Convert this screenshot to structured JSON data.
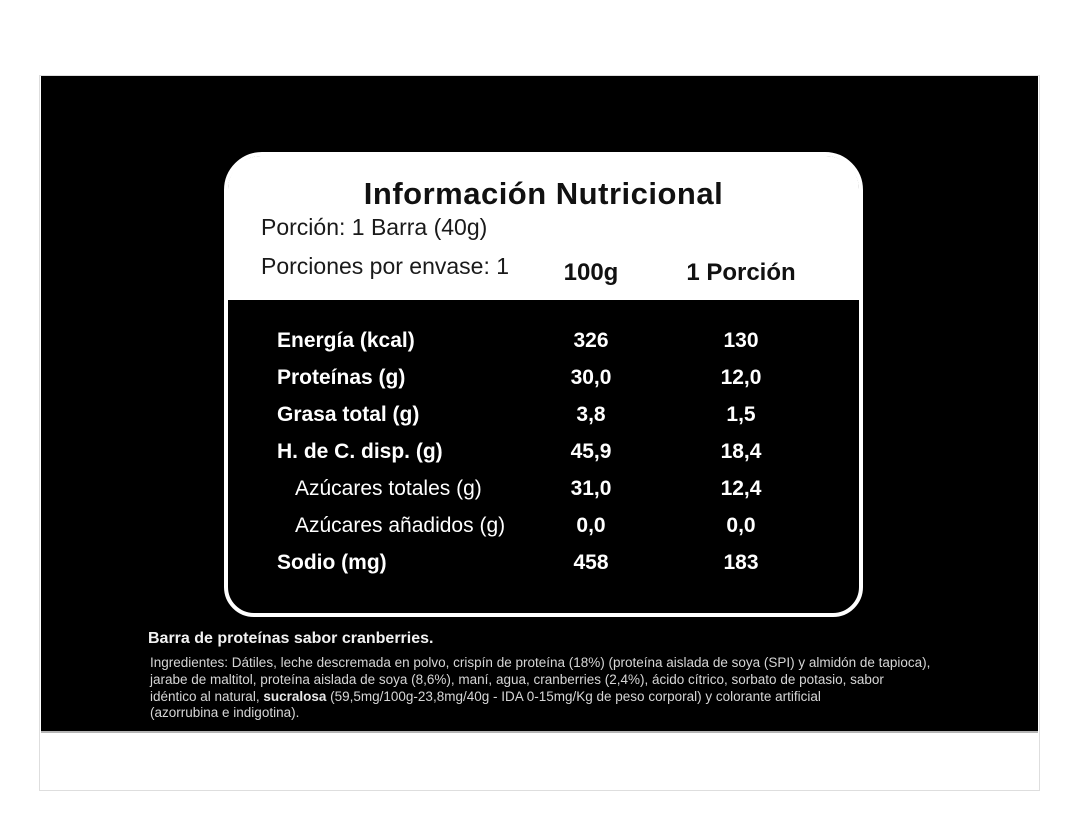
{
  "colors": {
    "label_background": "#000000",
    "card_background": "#ffffff",
    "text_on_black": "#ffffff",
    "text_on_white": "#111111"
  },
  "nutrition_card": {
    "title": "Información Nutricional",
    "serving_line": "Porción: 1 Barra (40g)",
    "servings_per_pack_line": "Porciones por envase: 1",
    "columns": {
      "per_100g": "100g",
      "per_portion": "1 Porción"
    },
    "rows": [
      {
        "label": "Energía (kcal)",
        "per_100g": "326",
        "per_portion": "130"
      },
      {
        "label": "Proteínas (g)",
        "per_100g": "30,0",
        "per_portion": "12,0"
      },
      {
        "label": "Grasa total (g)",
        "per_100g": "3,8",
        "per_portion": "1,5"
      },
      {
        "label": "H. de C. disp. (g)",
        "per_100g": "45,9",
        "per_portion": "18,4"
      },
      {
        "label": "Azúcares totales (g)",
        "per_100g": "31,0",
        "per_portion": "12,4"
      },
      {
        "label": "Azúcares añadidos (g)",
        "per_100g": "0,0",
        "per_portion": "0,0"
      },
      {
        "label": "Sodio (mg)",
        "per_100g": "458",
        "per_portion": "183"
      }
    ]
  },
  "footer": {
    "product_name": "Barra de proteínas sabor cranberries.",
    "ingredients_line1": "Ingredientes: Dátiles, leche descremada en polvo, crispín de proteína (18%) (proteína aislada de soya (SPI) y almidón de tapioca),",
    "ingredients_line2": "jarabe de maltitol, proteína aislada de soya (8,6%), maní, agua, cranberries (2,4%), ácido cítrico, sorbato de potasio, sabor",
    "ingredients_line3_pre": "idéntico al natural, ",
    "ingredients_line3_bold": "sucralosa",
    "ingredients_line3_post": " (59,5mg/100g-23,8mg/40g - IDA 0-15mg/Kg de peso corporal) y colorante artificial",
    "ingredients_line4": "(azorrubina e indigotina)."
  }
}
